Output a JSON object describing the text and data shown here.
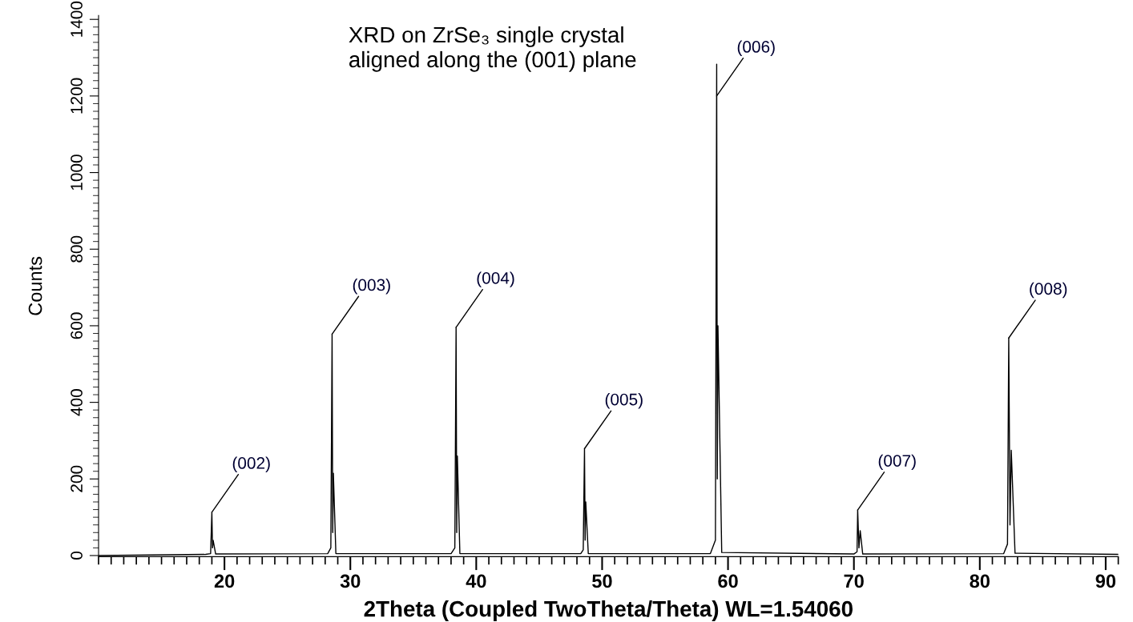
{
  "chart_data": {
    "type": "line",
    "title": "XRD on ZrSe₃ single crystal\naligned along the (001) plane",
    "xlabel": "2Theta (Coupled TwoTheta/Theta) WL=1.54060",
    "ylabel": "Counts",
    "series": [
      {
        "color": "#000000",
        "x": [
          10,
          18.5,
          18.9,
          19.0,
          19.05,
          19.1,
          19.3,
          28.2,
          28.45,
          28.55,
          28.6,
          28.65,
          28.85,
          38.0,
          38.3,
          38.4,
          38.45,
          38.5,
          38.7,
          48.3,
          48.5,
          48.6,
          48.65,
          48.7,
          48.9,
          58.6,
          59.0,
          59.1,
          59.15,
          59.2,
          59.5,
          70.0,
          70.25,
          70.3,
          70.4,
          70.5,
          70.7,
          81.9,
          82.2,
          82.3,
          82.4,
          82.5,
          82.8,
          91
        ],
        "values": [
          0,
          3,
          5,
          113,
          20,
          40,
          4,
          5,
          20,
          578,
          60,
          215,
          5,
          5,
          20,
          596,
          60,
          260,
          5,
          5,
          15,
          279,
          40,
          140,
          5,
          5,
          40,
          1283,
          200,
          600,
          8,
          4,
          10,
          119,
          20,
          65,
          4,
          5,
          30,
          568,
          80,
          275,
          6,
          3
        ]
      }
    ],
    "annotations": [
      {
        "text": "(002)",
        "x": 19.0,
        "y": 113
      },
      {
        "text": "(003)",
        "x": 28.55,
        "y": 578
      },
      {
        "text": "(004)",
        "x": 38.4,
        "y": 596
      },
      {
        "text": "(005)",
        "x": 48.6,
        "y": 279
      },
      {
        "text": "(006)",
        "x": 59.1,
        "y": 1200
      },
      {
        "text": "(007)",
        "x": 70.3,
        "y": 119
      },
      {
        "text": "(008)",
        "x": 82.3,
        "y": 568
      }
    ],
    "xlim": [
      10,
      91
    ],
    "ylim": [
      -3,
      1410
    ],
    "xticks": [
      20,
      30,
      40,
      50,
      60,
      70,
      80,
      90
    ],
    "yticks": [
      0,
      200,
      400,
      600,
      800,
      1000,
      1200,
      1400
    ],
    "grid": false,
    "marker": "none",
    "line_style": "solid"
  }
}
